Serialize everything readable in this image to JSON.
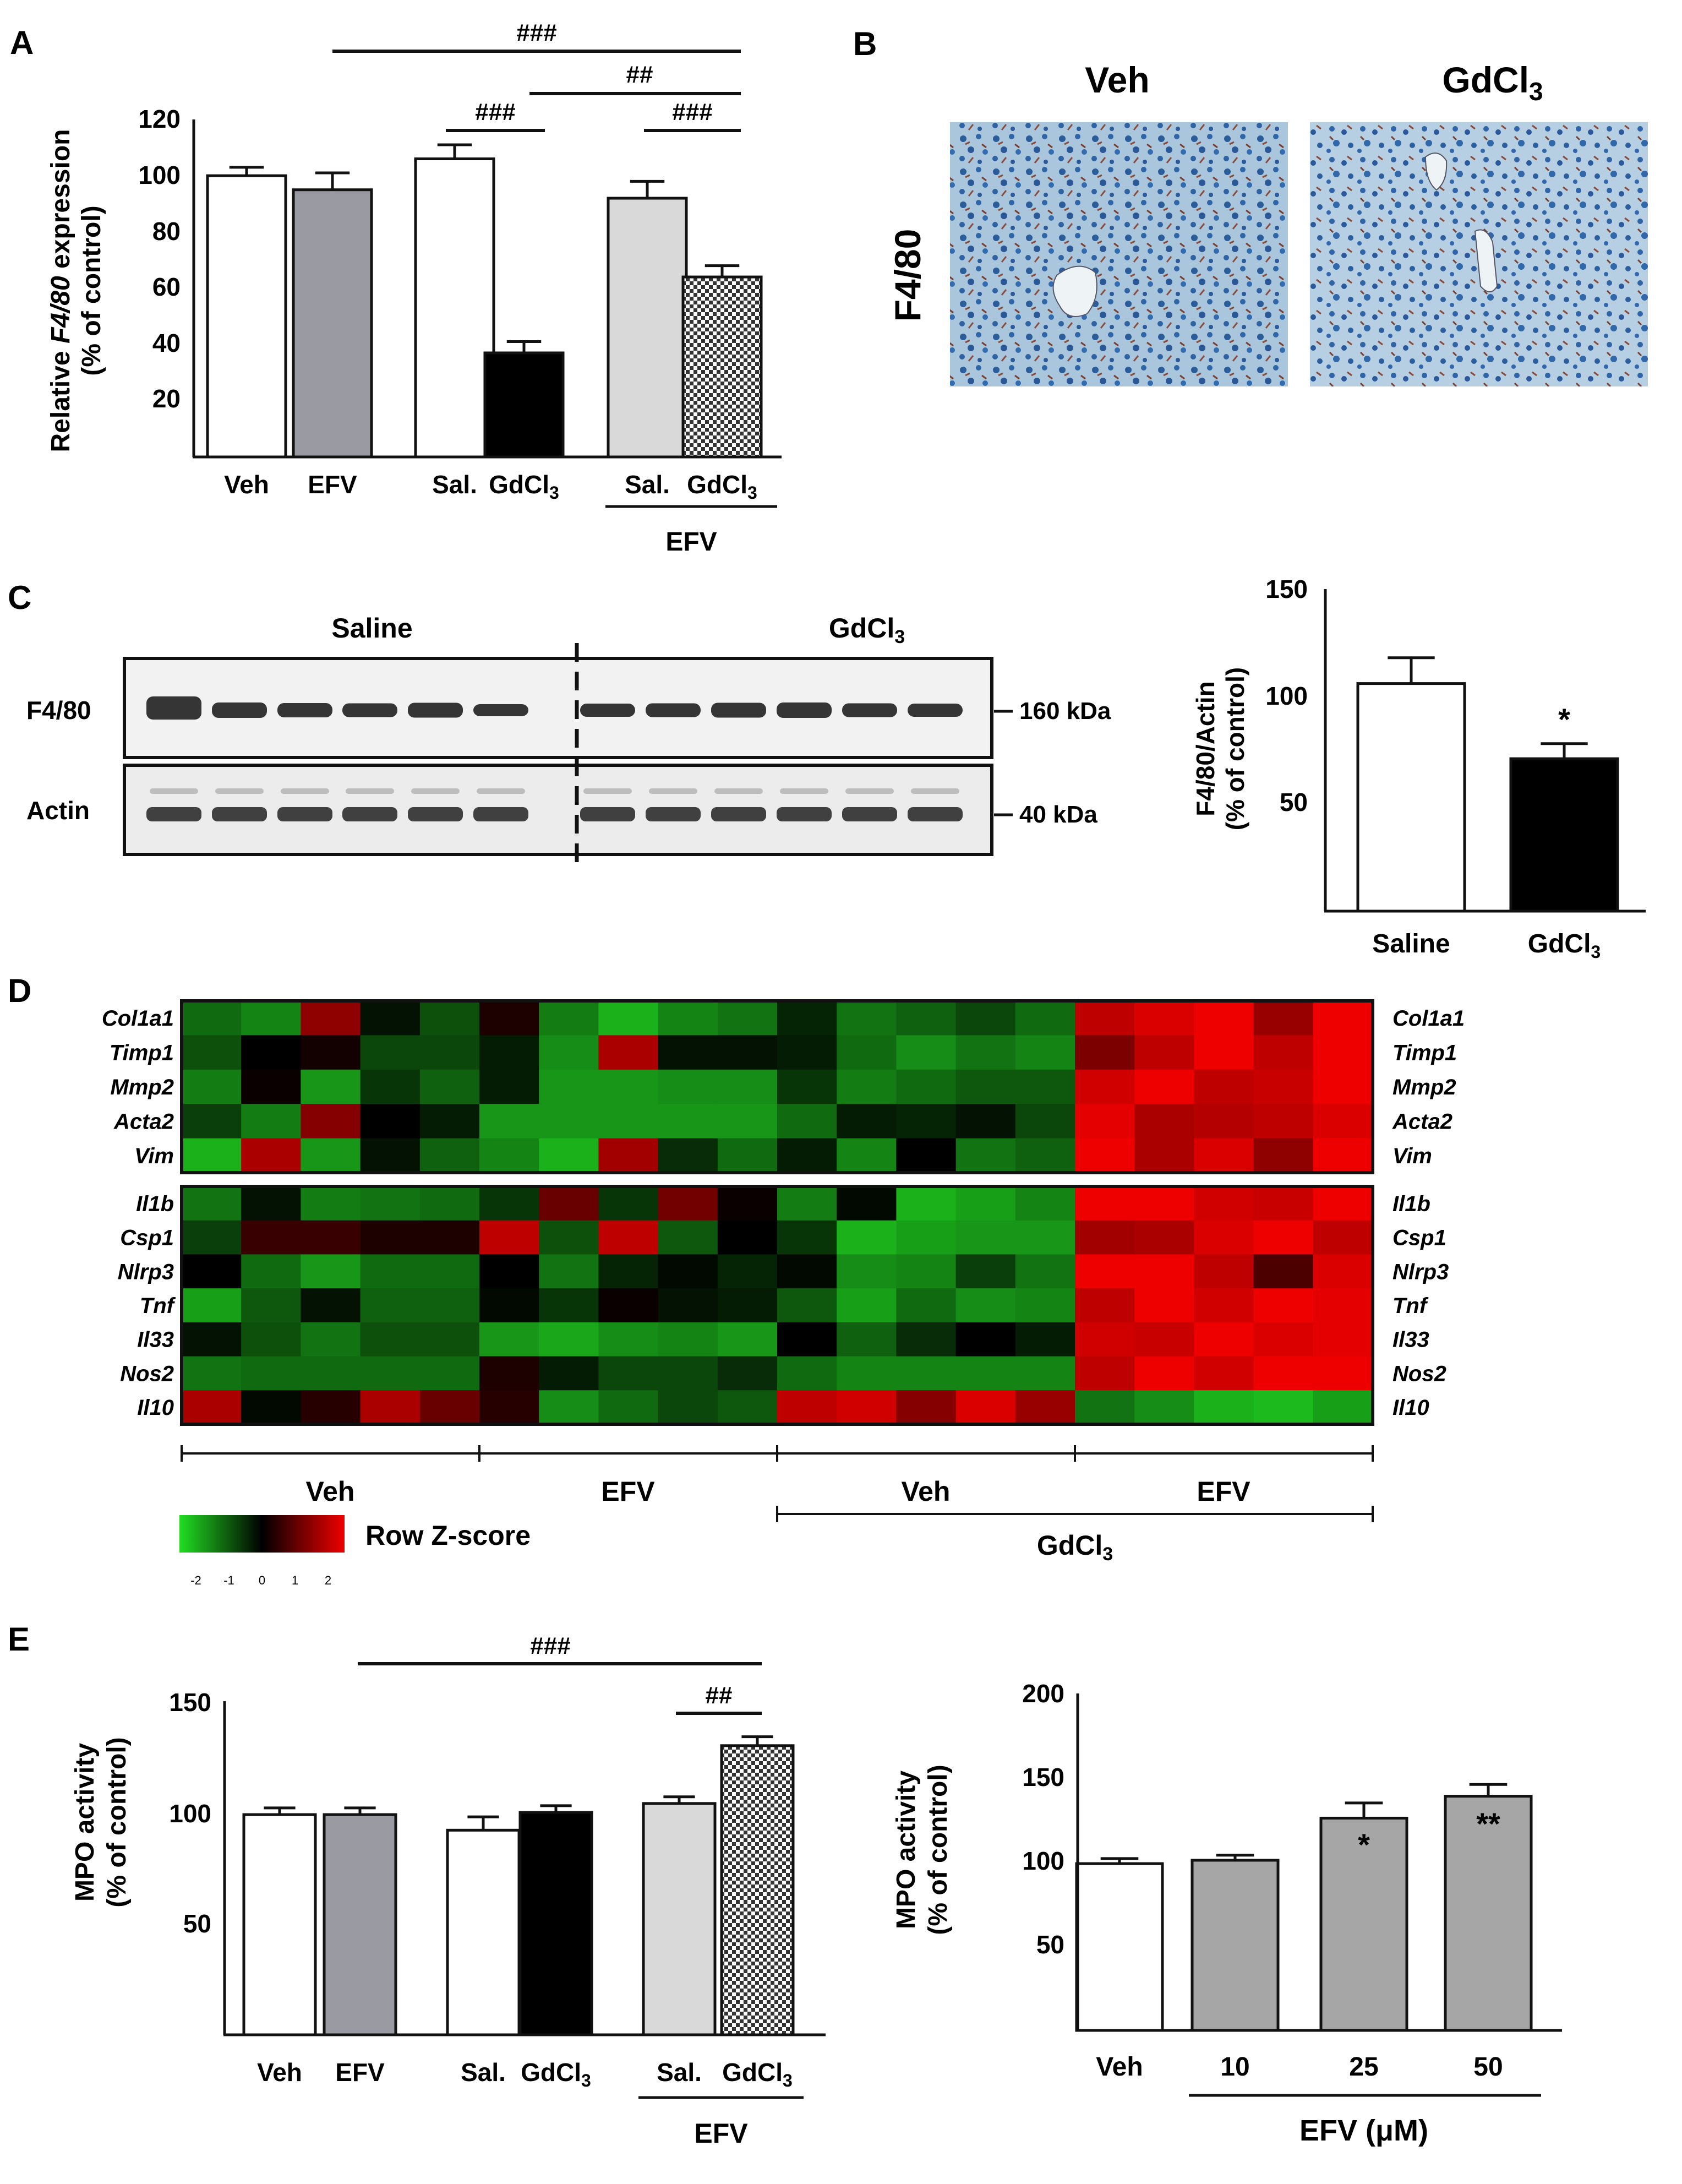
{
  "panel_labels": {
    "A": "A",
    "B": "B",
    "C": "C",
    "D": "D",
    "E": "E"
  },
  "chart_data": [
    {
      "panel": "A",
      "type": "bar",
      "ylabel_pre": "Relative ",
      "ylabel_gene": "F4/80",
      "ylabel_post": " expression",
      "ylabel2": "(% of control)",
      "ylim": [
        0,
        120
      ],
      "yticks": [
        "120",
        "100",
        "80",
        "60",
        "40",
        "20"
      ],
      "categories": [
        {
          "label": "Veh",
          "fill": "#ffffff",
          "value": 100,
          "err": 3
        },
        {
          "label": "EFV",
          "fill": "#9a9aa2",
          "value": 95,
          "err": 6
        },
        {
          "label": "Sal.",
          "fill": "#ffffff",
          "value": 106,
          "err": 5
        },
        {
          "label": "GdCl",
          "fill": "#000000",
          "value": 37,
          "err": 4
        },
        {
          "label": "Sal.",
          "fill": "#d9d9d9",
          "value": 92,
          "err": 6
        },
        {
          "label": "GdCl",
          "fill": "pattern",
          "value": 64,
          "err": 4
        }
      ],
      "subscript": "3",
      "group_label": "EFV",
      "sig": [
        "###",
        "##",
        "###",
        "###"
      ]
    },
    {
      "panel": "C",
      "type": "bar",
      "ylabel": "F4/80/Actin",
      "ylabel2": "(% of control)",
      "ylim": [
        0,
        150
      ],
      "yticks": [
        "150",
        "100",
        "50"
      ],
      "categories": [
        {
          "label": "Saline",
          "fill": "#ffffff",
          "value": 106,
          "err": 12
        },
        {
          "label": "GdCl",
          "fill": "#000000",
          "value": 71,
          "err": 7
        }
      ],
      "subscript": "3",
      "star": "*"
    },
    {
      "panel": "D",
      "type": "heatmap",
      "genes_top": [
        "Col1a1",
        "Timp1",
        "Mmp2",
        "Acta2",
        "Vim"
      ],
      "genes_bottom": [
        "Il1b",
        "Csp1",
        "Nlrp3",
        "Tnf",
        "Il33",
        "Nos2",
        "Il10"
      ],
      "z_top": [
        [
          -1.2,
          -1.5,
          1.5,
          -0.2,
          -0.9,
          0.3,
          -1.4,
          -2,
          -1.5,
          -1.3,
          -0.4,
          -1.3,
          -1.1,
          -0.8,
          -1.2,
          2,
          2.3,
          2.7,
          1.6,
          2.5
        ],
        [
          -0.9,
          0,
          0.2,
          -0.8,
          -0.8,
          -0.3,
          -1.6,
          1.8,
          -0.2,
          -0.2,
          -0.3,
          -1.2,
          -1.6,
          -1.3,
          -1.5,
          1.3,
          2,
          2.5,
          2,
          2.6
        ],
        [
          -1.4,
          0.1,
          -1.7,
          -0.6,
          -1.1,
          -0.3,
          -1.7,
          -1.7,
          -1.6,
          -1.6,
          -0.6,
          -1.4,
          -1.2,
          -1,
          -1,
          2.2,
          2.7,
          2,
          2.1,
          2.5
        ],
        [
          -0.7,
          -1.4,
          1.4,
          0,
          -0.3,
          -1.7,
          -1.7,
          -1.7,
          -1.7,
          -1.7,
          -1.2,
          -0.3,
          -0.4,
          -0.2,
          -0.8,
          2.4,
          1.8,
          1.9,
          2,
          2.3
        ],
        [
          -2,
          1.8,
          -1.7,
          -0.2,
          -1.1,
          -1.5,
          -2,
          1.7,
          -0.5,
          -1.2,
          -0.3,
          -1.5,
          0,
          -1.3,
          -1.1,
          2.5,
          1.8,
          2.3,
          1.5,
          2.5
        ]
      ],
      "z_bottom": [
        [
          -1.3,
          -0.2,
          -1.4,
          -1.3,
          -1.2,
          -0.6,
          1.1,
          -0.6,
          1.2,
          0.1,
          -1.4,
          -0.1,
          -2,
          -1.8,
          -1.5,
          2.6,
          2.6,
          2.2,
          2.1,
          2.5
        ],
        [
          -0.7,
          0.6,
          0.6,
          0.3,
          0.3,
          2,
          -0.9,
          2,
          -1,
          0,
          -0.6,
          -2,
          -1.8,
          -1.7,
          -1.7,
          1.7,
          1.8,
          2.3,
          2.6,
          2
        ],
        [
          0,
          -1.2,
          -1.7,
          -1.2,
          -1.2,
          0,
          -1.3,
          -0.4,
          -0.1,
          -0.4,
          -0.1,
          -1.6,
          -1.5,
          -0.7,
          -1.3,
          2.9,
          2.5,
          2,
          0.8,
          2.3
        ],
        [
          -1.8,
          -1,
          -0.2,
          -1.1,
          -1.1,
          -0.1,
          -0.6,
          0.1,
          -0.2,
          -0.3,
          -1,
          -1.8,
          -1.2,
          -1.6,
          -1.5,
          2,
          2.6,
          2.2,
          2.8,
          2.4
        ],
        [
          -0.2,
          -0.9,
          -1.3,
          -0.9,
          -0.9,
          -1.7,
          -1.9,
          -1.6,
          -1.5,
          -1.7,
          0,
          -1.1,
          -0.5,
          0,
          -0.3,
          2.2,
          2.1,
          2.6,
          2.3,
          2.4
        ],
        [
          -1.3,
          -1.2,
          -1.2,
          -1.2,
          -1.2,
          0.3,
          -0.3,
          -0.8,
          -0.8,
          -0.5,
          -1.2,
          -1.5,
          -1.5,
          -1.5,
          -1.5,
          2,
          2.7,
          2.2,
          2.6,
          2.6
        ],
        [
          1.8,
          -0.1,
          0.4,
          1.8,
          1.1,
          0.4,
          -1.6,
          -1.2,
          -0.8,
          -1,
          2,
          2.2,
          1.4,
          2.3,
          1.6,
          -1.3,
          -1.6,
          -2,
          -2.1,
          -1.8
        ]
      ],
      "groups": [
        "Veh",
        "EFV",
        "Veh",
        "EFV"
      ],
      "treatment_label": "GdCl",
      "subscript": "3",
      "legend_title": "Row Z-score",
      "legend_ticks": [
        "-2",
        "-1",
        "0",
        "1",
        "2"
      ],
      "colors": {
        "low": "#22dd22",
        "mid": "#000000",
        "high": "#ee0000"
      }
    },
    {
      "panel": "E",
      "type": "bar",
      "ylabel": "MPO activity",
      "ylabel2": "(% of control)",
      "ylim": [
        0,
        150
      ],
      "yticks": [
        "150",
        "100",
        "50"
      ],
      "categories": [
        {
          "label": "Veh",
          "fill": "#ffffff",
          "value": 99,
          "err": 3
        },
        {
          "label": "EFV",
          "fill": "#9a9aa2",
          "value": 99,
          "err": 3
        },
        {
          "label": "Sal.",
          "fill": "#ffffff",
          "value": 92,
          "err": 6
        },
        {
          "label": "GdCl",
          "fill": "#000000",
          "value": 100,
          "err": 3
        },
        {
          "label": "Sal.",
          "fill": "#d9d9d9",
          "value": 104,
          "err": 3
        },
        {
          "label": "GdCl",
          "fill": "pattern",
          "value": 130,
          "err": 4
        }
      ],
      "subscript": "3",
      "group_label": "EFV",
      "sig": [
        "###",
        "##"
      ]
    },
    {
      "panel": "E-right",
      "type": "bar",
      "ylabel": "MPO activity",
      "ylabel2": "(% of control)",
      "ylim": [
        0,
        200
      ],
      "yticks": [
        "200",
        "150",
        "100",
        "50"
      ],
      "categories": [
        {
          "label": "Veh",
          "fill": "#ffffff",
          "value": 99,
          "err": 3
        },
        {
          "label": "10",
          "fill": "#a6a6a6",
          "value": 101,
          "err": 3
        },
        {
          "label": "25",
          "fill": "#a6a6a6",
          "value": 126,
          "err": 9
        },
        {
          "label": "50",
          "fill": "#a6a6a6",
          "value": 139,
          "err": 7
        }
      ],
      "stars": [
        "",
        "",
        "*",
        "**"
      ],
      "xlabel": "EFV (μM)"
    }
  ],
  "panel_b": {
    "label_left": "Veh",
    "label_right_pre": "GdCl",
    "subscript": "3",
    "stain": "F4/80"
  },
  "blot": {
    "saline_label": "Saline",
    "gdcl_label": "GdCl",
    "subscript": "3",
    "row1_label": "F4/80",
    "row2_label": "Actin",
    "kda1": "160 kDa",
    "kda2": "40 kDa"
  }
}
